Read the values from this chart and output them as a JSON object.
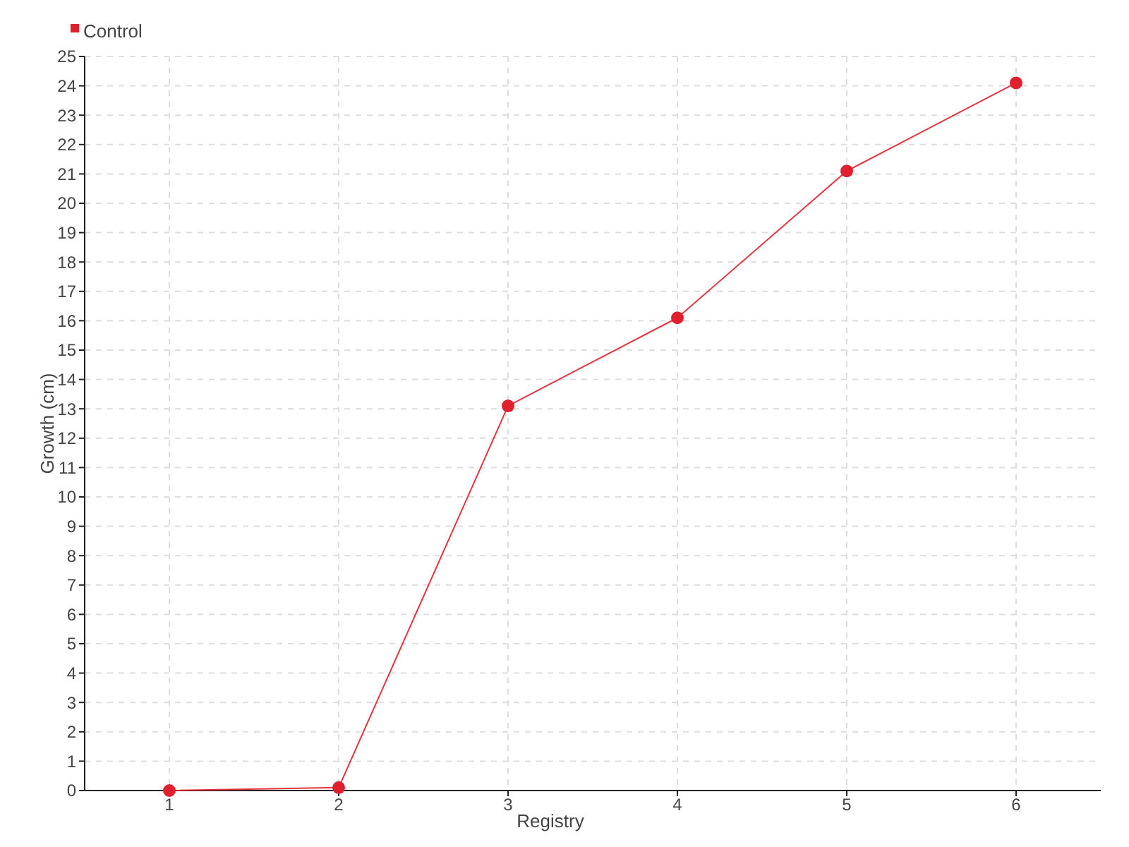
{
  "chart_data": {
    "type": "line",
    "xlabel": "Registry",
    "ylabel": "Growth (cm)",
    "x": [
      1,
      2,
      3,
      4,
      5,
      6
    ],
    "series": [
      {
        "name": "Control",
        "color": "#e0202e",
        "values": [
          0,
          0.1,
          13.1,
          16.1,
          21.1,
          24.1
        ]
      }
    ],
    "xlim": [
      0.5,
      6.5
    ],
    "xticks": [
      1,
      2,
      3,
      4,
      5,
      6
    ],
    "ylim": [
      0,
      25
    ],
    "yticks": [
      0,
      1,
      2,
      3,
      4,
      5,
      6,
      7,
      8,
      9,
      10,
      11,
      12,
      13,
      14,
      15,
      16,
      17,
      18,
      19,
      20,
      21,
      22,
      23,
      24,
      25
    ],
    "grid": true,
    "legend": "top left",
    "marker": "circle",
    "line_style": "solid"
  }
}
